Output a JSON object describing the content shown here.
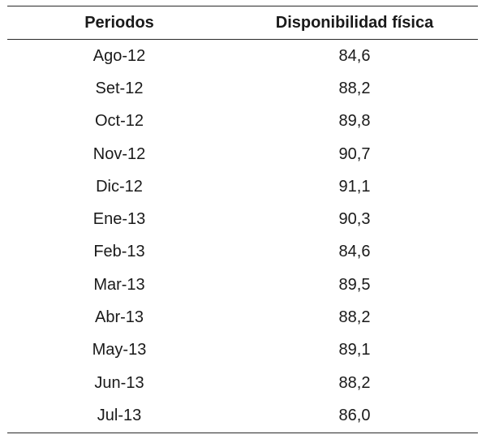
{
  "table": {
    "headers": [
      "Periodos",
      "Disponibilidad física"
    ],
    "rows": [
      [
        "Ago-12",
        "84,6"
      ],
      [
        "Set-12",
        "88,2"
      ],
      [
        "Oct-12",
        "89,8"
      ],
      [
        "Nov-12",
        "90,7"
      ],
      [
        "Dic-12",
        "91,1"
      ],
      [
        "Ene-13",
        "90,3"
      ],
      [
        "Feb-13",
        "84,6"
      ],
      [
        "Mar-13",
        "89,5"
      ],
      [
        "Abr-13",
        "88,2"
      ],
      [
        "May-13",
        "89,1"
      ],
      [
        "Jun-13",
        "88,2"
      ],
      [
        "Jul-13",
        "86,0"
      ]
    ]
  }
}
